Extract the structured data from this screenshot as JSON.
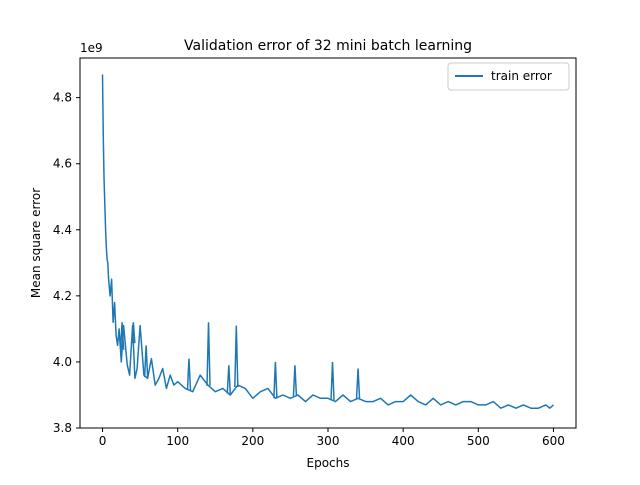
{
  "chart_data": {
    "type": "line",
    "title": "Validation error of 32 mini batch learning",
    "xlabel": "Epochs",
    "ylabel": "Mean square error",
    "y_offset_label": "1e9",
    "y_scale": 1000000000,
    "xlim": [
      -30,
      630
    ],
    "ylim": [
      3.8,
      4.92
    ],
    "x_ticks": [
      0,
      100,
      200,
      300,
      400,
      500,
      600
    ],
    "y_ticks": [
      3.8,
      4.0,
      4.2,
      4.4,
      4.6,
      4.8
    ],
    "x_tick_labels": [
      "0",
      "100",
      "200",
      "300",
      "400",
      "500",
      "600"
    ],
    "y_tick_labels": [
      "3.8",
      "4.0",
      "4.2",
      "4.4",
      "4.6",
      "4.8"
    ],
    "grid": false,
    "legend_position": "top-right",
    "colors": {
      "series": "#1f77b4",
      "axes": "#000000",
      "background": "#ffffff"
    },
    "series": [
      {
        "name": "train error",
        "color": "#1f77b4",
        "x": [
          0,
          1,
          2,
          3,
          4,
          5,
          6,
          7,
          8,
          10,
          12,
          14,
          16,
          18,
          20,
          22,
          25,
          28,
          30,
          33,
          36,
          40,
          43,
          46,
          50,
          55,
          60,
          65,
          70,
          75,
          80,
          85,
          90,
          95,
          100,
          110,
          120,
          130,
          140,
          150,
          160,
          170,
          180,
          190,
          200,
          210,
          220,
          230,
          240,
          250,
          260,
          270,
          280,
          290,
          300,
          310,
          320,
          330,
          340,
          350,
          360,
          370,
          380,
          390,
          400,
          410,
          420,
          430,
          440,
          450,
          460,
          470,
          480,
          490,
          500,
          510,
          520,
          530,
          540,
          550,
          560,
          570,
          580,
          590,
          595,
          600
        ],
        "y": [
          4.87,
          4.68,
          4.56,
          4.48,
          4.4,
          4.35,
          4.31,
          4.3,
          4.25,
          4.2,
          4.25,
          4.12,
          4.18,
          4.08,
          4.05,
          4.1,
          4.0,
          4.11,
          4.06,
          3.99,
          3.96,
          4.11,
          3.95,
          3.98,
          4.11,
          3.96,
          3.95,
          4.01,
          3.93,
          3.95,
          3.98,
          3.92,
          3.96,
          3.93,
          3.94,
          3.92,
          3.91,
          3.96,
          3.93,
          3.91,
          3.92,
          3.9,
          3.93,
          3.92,
          3.89,
          3.91,
          3.92,
          3.89,
          3.9,
          3.89,
          3.9,
          3.88,
          3.9,
          3.89,
          3.89,
          3.88,
          3.9,
          3.88,
          3.89,
          3.88,
          3.88,
          3.89,
          3.87,
          3.88,
          3.88,
          3.9,
          3.88,
          3.87,
          3.89,
          3.87,
          3.88,
          3.87,
          3.88,
          3.88,
          3.87,
          3.87,
          3.88,
          3.86,
          3.87,
          3.86,
          3.87,
          3.86,
          3.86,
          3.87,
          3.86,
          3.87
        ]
      }
    ],
    "spikes": [
      {
        "x": 141,
        "y": 4.12
      },
      {
        "x": 178,
        "y": 4.11
      },
      {
        "x": 306,
        "y": 4.0
      },
      {
        "x": 41,
        "y": 4.12
      },
      {
        "x": 26,
        "y": 4.12
      },
      {
        "x": 230,
        "y": 4.0
      },
      {
        "x": 168,
        "y": 3.99
      },
      {
        "x": 340,
        "y": 3.98
      },
      {
        "x": 256,
        "y": 3.99
      },
      {
        "x": 115,
        "y": 4.01
      },
      {
        "x": 58,
        "y": 4.05
      }
    ]
  }
}
